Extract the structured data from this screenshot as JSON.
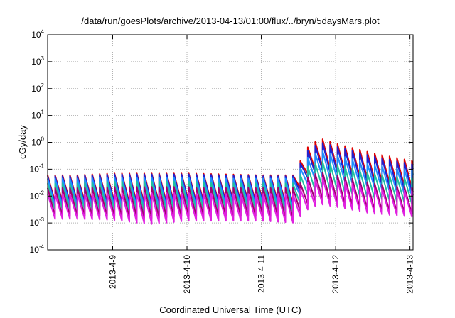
{
  "chart_data": {
    "type": "line",
    "title": "/data/run/goesPlots/archive/2013-04-13/01:00/flux/../bryn/5daysMars.plot",
    "xlabel": "Coordinated Universal Time (UTC)",
    "ylabel": "cGy/day",
    "yscale": "log",
    "ylim": [
      0.0001,
      10000
    ],
    "xlim": [
      "2013-04-08 03:00",
      "2013-04-13 01:00"
    ],
    "y_tick_labels": [
      {
        "base": "10",
        "exp": "-4"
      },
      {
        "base": "10",
        "exp": "-3"
      },
      {
        "base": "10",
        "exp": "-2"
      },
      {
        "base": "10",
        "exp": "-1"
      },
      {
        "base": "10",
        "exp": "0"
      },
      {
        "base": "10",
        "exp": "1"
      },
      {
        "base": "10",
        "exp": "2"
      },
      {
        "base": "10",
        "exp": "3"
      },
      {
        "base": "10",
        "exp": "4"
      }
    ],
    "x_tick_labels": [
      "2013-4-9",
      "2013-4-10",
      "2013-4-11",
      "2013-4-12",
      "2013-4-13"
    ],
    "grid": true,
    "legend": "none",
    "sampling": "sawtooth, one cycle every ~2.4 hours; each cycle jumps from a minimum to a peak then decays",
    "x": [
      "2013-04-08 03:00",
      "2013-04-08 12:00",
      "2013-04-09 00:00",
      "2013-04-09 12:00",
      "2013-04-10 00:00",
      "2013-04-10 12:00",
      "2013-04-11 00:00",
      "2013-04-11 12:00",
      "2013-04-11 13:00",
      "2013-04-11 19:00",
      "2013-04-12 00:00",
      "2013-04-12 12:00",
      "2013-04-13 01:00"
    ],
    "series": [
      {
        "color": "#e00000",
        "peak": [
          0.06,
          0.06,
          0.07,
          0.07,
          0.07,
          0.065,
          0.06,
          0.06,
          0.45,
          1.4,
          0.9,
          0.4,
          0.2
        ],
        "trough": [
          0.006,
          0.006,
          0.006,
          0.005,
          0.006,
          0.006,
          0.006,
          0.005,
          0.05,
          0.12,
          0.09,
          0.04,
          0.02
        ]
      },
      {
        "color": "#2020d0",
        "peak": [
          0.055,
          0.055,
          0.065,
          0.065,
          0.065,
          0.06,
          0.055,
          0.055,
          0.35,
          1.0,
          0.7,
          0.3,
          0.15
        ],
        "trough": [
          0.005,
          0.005,
          0.005,
          0.004,
          0.005,
          0.005,
          0.005,
          0.004,
          0.035,
          0.09,
          0.07,
          0.03,
          0.015
        ]
      },
      {
        "color": "#1e90ff",
        "peak": [
          0.045,
          0.045,
          0.05,
          0.05,
          0.05,
          0.045,
          0.045,
          0.045,
          0.2,
          0.5,
          0.35,
          0.15,
          0.09
        ],
        "trough": [
          0.004,
          0.004,
          0.004,
          0.0035,
          0.004,
          0.004,
          0.004,
          0.0035,
          0.02,
          0.05,
          0.04,
          0.02,
          0.01
        ]
      },
      {
        "color": "#20c0a0",
        "peak": [
          0.03,
          0.03,
          0.035,
          0.035,
          0.035,
          0.03,
          0.03,
          0.03,
          0.1,
          0.2,
          0.15,
          0.07,
          0.045
        ],
        "trough": [
          0.003,
          0.003,
          0.003,
          0.0025,
          0.003,
          0.003,
          0.003,
          0.0025,
          0.008,
          0.02,
          0.015,
          0.008,
          0.005
        ]
      },
      {
        "color": "#a00070",
        "peak": [
          0.02,
          0.02,
          0.022,
          0.022,
          0.022,
          0.02,
          0.02,
          0.02,
          0.04,
          0.08,
          0.06,
          0.03,
          0.02
        ],
        "trough": [
          0.0018,
          0.0018,
          0.0018,
          0.0015,
          0.0018,
          0.0018,
          0.0018,
          0.0015,
          0.004,
          0.008,
          0.006,
          0.003,
          0.0022
        ]
      },
      {
        "color": "#e020e0",
        "peak": [
          0.012,
          0.012,
          0.013,
          0.013,
          0.013,
          0.012,
          0.012,
          0.012,
          0.025,
          0.05,
          0.04,
          0.02,
          0.015
        ],
        "trough": [
          0.0014,
          0.0014,
          0.0013,
          0.0009,
          0.0012,
          0.0012,
          0.0012,
          0.001,
          0.0025,
          0.005,
          0.004,
          0.0022,
          0.0017
        ]
      }
    ]
  }
}
